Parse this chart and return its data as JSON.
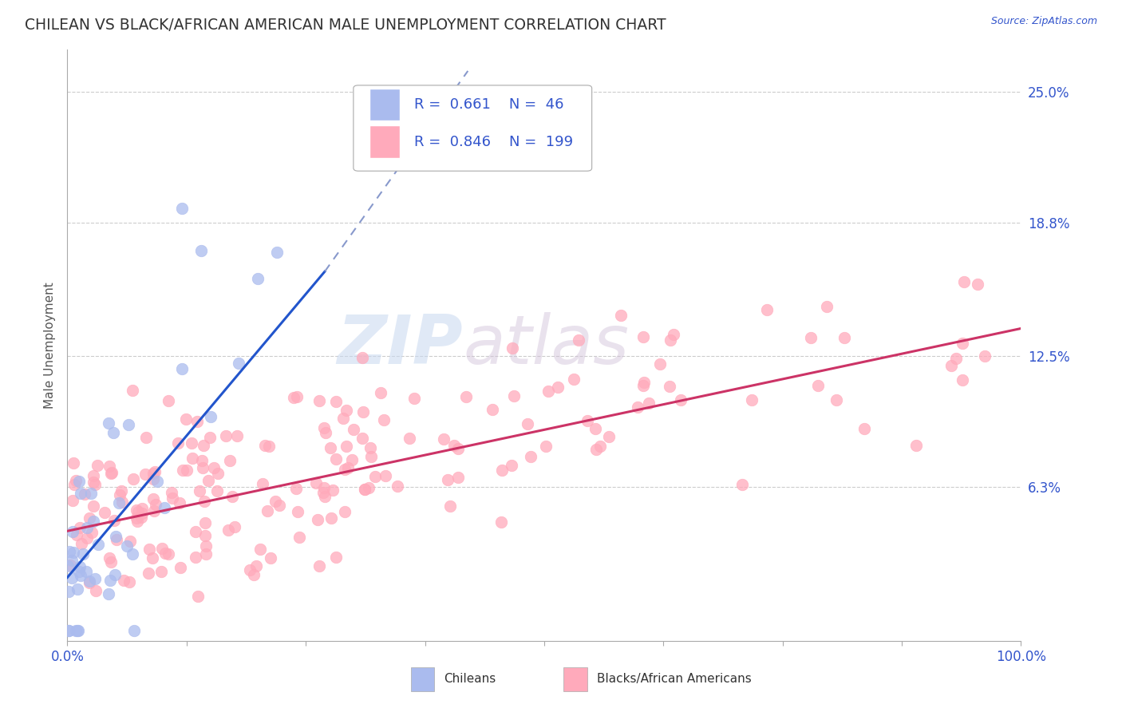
{
  "title": "CHILEAN VS BLACK/AFRICAN AMERICAN MALE UNEMPLOYMENT CORRELATION CHART",
  "source_text": "Source: ZipAtlas.com",
  "ylabel": "Male Unemployment",
  "xlim": [
    0.0,
    1.0
  ],
  "ylim": [
    -0.01,
    0.27
  ],
  "y_tick_labels": [
    "6.3%",
    "12.5%",
    "18.8%",
    "25.0%"
  ],
  "y_tick_values": [
    0.063,
    0.125,
    0.188,
    0.25
  ],
  "legend_entries": [
    {
      "label": "Chileans",
      "color": "#aabbee",
      "R": "0.661",
      "N": "46"
    },
    {
      "label": "Blacks/African Americans",
      "color": "#ffaabb",
      "R": "0.846",
      "N": "199"
    }
  ],
  "chilean_trend_solid": {
    "color": "#2255cc",
    "x_start": 0.0,
    "y_start": 0.02,
    "x_end": 0.27,
    "y_end": 0.165
  },
  "chilean_trend_dashed": {
    "color": "#8899cc",
    "x_start": 0.27,
    "y_start": 0.165,
    "x_end": 0.42,
    "y_end": 0.26
  },
  "black_trendline": {
    "color": "#cc3366",
    "x_start": 0.0,
    "y_start": 0.042,
    "x_end": 1.0,
    "y_end": 0.138
  },
  "watermark_zip": "ZIP",
  "watermark_atlas": "atlas",
  "background_color": "#ffffff",
  "grid_color": "#cccccc",
  "axis_color": "#3355cc",
  "title_color": "#333333",
  "title_fontsize": 13.5,
  "label_fontsize": 11
}
